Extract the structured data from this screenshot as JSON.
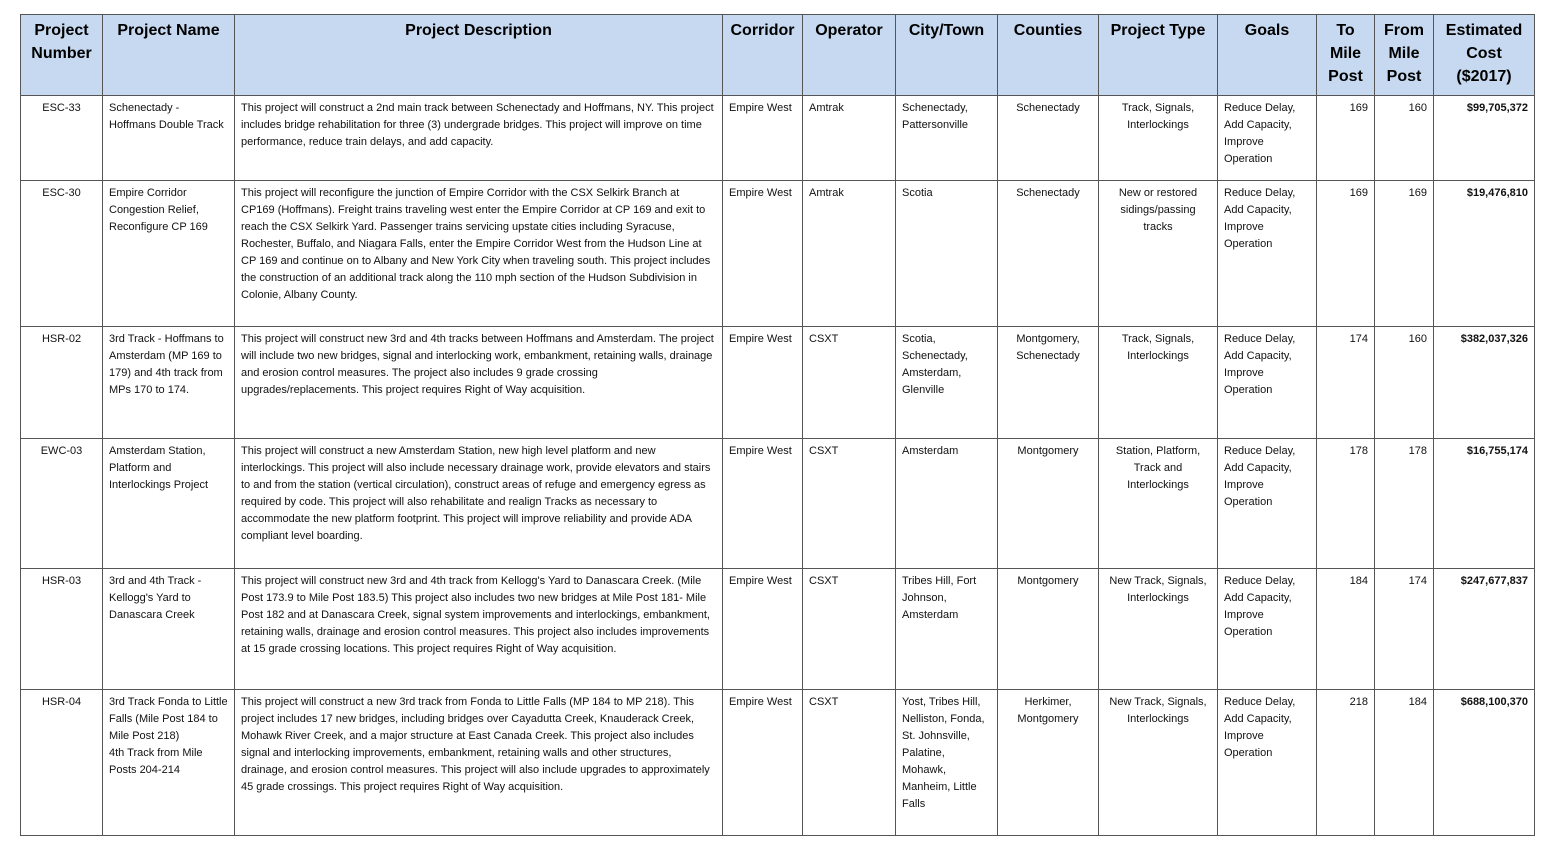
{
  "table": {
    "headers": [
      "Project Number",
      "Project Name",
      "Project Description",
      "Corridor",
      "Operator",
      "City/Town",
      "Counties",
      "Project Type",
      "Goals",
      "To Mile Post",
      "From Mile Post",
      "Estimated Cost ($2017)"
    ],
    "rows": [
      [
        "ESC-33",
        "Schenectady - Hoffmans Double Track",
        "This project will construct a 2nd main track between Schenectady and Hoffmans, NY. This project includes bridge rehabilitation for three (3) undergrade bridges. This project will improve on time performance, reduce train delays, and add capacity.",
        "Empire West",
        "Amtrak",
        "Schenectady, Pattersonville",
        "Schenectady",
        "Track, Signals, Interlockings",
        "Reduce Delay, Add Capacity, Improve Operation",
        169,
        160,
        "$99,705,372"
      ],
      [
        "ESC-30",
        "Empire Corridor Congestion Relief, Reconfigure CP 169",
        "This project will reconfigure the junction of Empire Corridor with the CSX Selkirk Branch at CP169 (Hoffmans). Freight trains traveling west enter the Empire Corridor at CP 169 and exit to reach the CSX Selkirk Yard. Passenger trains servicing upstate cities including Syracuse, Rochester, Buffalo, and Niagara Falls, enter the Empire Corridor West from the Hudson Line at CP 169 and continue on to Albany and New York City when traveling south. This project includes the construction of an additional track along the 110 mph section of the Hudson Subdivision in Colonie, Albany County.",
        "Empire West",
        "Amtrak",
        "Scotia",
        "Schenectady",
        "New or restored sidings/passing tracks",
        "Reduce Delay, Add Capacity, Improve Operation",
        169,
        169,
        "$19,476,810"
      ],
      [
        "HSR-02",
        "3rd Track - Hoffmans to Amsterdam (MP 169 to 179) and 4th track from MPs 170 to 174.",
        "This project will construct new 3rd and 4th tracks between Hoffmans and Amsterdam. The project will include two new bridges, signal and interlocking work, embankment, retaining walls, drainage and erosion control measures. The project also includes 9 grade crossing upgrades/replacements. This project requires Right of Way acquisition.",
        "Empire West",
        "CSXT",
        "Scotia, Schenectady, Amsterdam, Glenville",
        "Montgomery, Schenectady",
        "Track, Signals, Interlockings",
        "Reduce Delay, Add Capacity, Improve Operation",
        174,
        160,
        "$382,037,326"
      ],
      [
        "EWC-03",
        "Amsterdam Station, Platform and Interlockings Project",
        "This project will construct a new Amsterdam Station, new high level platform and new interlockings. This project will also include necessary drainage work, provide elevators and stairs to and from the station (vertical circulation), construct areas of refuge and emergency egress as required by code. This project will also rehabilitate and realign Tracks as necessary to accommodate the new platform footprint. This project will improve reliability and provide ADA compliant level boarding.",
        "Empire West",
        "CSXT",
        "Amsterdam",
        "Montgomery",
        "Station, Platform, Track and Interlockings",
        "Reduce Delay, Add Capacity, Improve Operation",
        178,
        178,
        "$16,755,174"
      ],
      [
        "HSR-03",
        "3rd and 4th Track - Kellogg's Yard to Danascara Creek",
        "This project will construct new 3rd and 4th track from Kellogg's Yard to Danascara Creek. (Mile Post 173.9 to Mile Post 183.5) This project also includes two new bridges at Mile Post 181- Mile Post 182 and at Danascara Creek, signal system improvements and interlockings, embankment, retaining walls, drainage and erosion control measures. This project also includes improvements at 15 grade crossing locations. This project requires Right of Way acquisition.",
        "Empire West",
        "CSXT",
        "Tribes Hill, Fort Johnson, Amsterdam",
        "Montgomery",
        "New Track, Signals, Interlockings",
        "Reduce Delay, Add Capacity, Improve Operation",
        184,
        174,
        "$247,677,837"
      ],
      [
        "HSR-04",
        "3rd Track Fonda to Little Falls (Mile Post 184 to Mile Post 218)\n4th Track from Mile Posts 204-214",
        "This project will construct a new 3rd track from Fonda to Little Falls (MP 184 to MP 218). This project includes 17 new bridges, including bridges over Cayadutta Creek, Knauderack Creek, Mohawk River Creek, and a major structure at East Canada Creek. This project also includes signal and interlocking improvements, embankment, retaining walls and other structures, drainage, and erosion control measures. This project will also include upgrades to approximately 45 grade crossings. This project requires Right of Way acquisition.",
        "Empire West",
        "CSXT",
        "Yost, Tribes Hill, Nelliston, Fonda, St. Johnsville, Palatine, Mohawk, Manheim, Little Falls",
        "Herkimer, Montgomery",
        "New Track, Signals, Interlockings",
        "Reduce Delay, Add Capacity, Improve Operation",
        218,
        184,
        "$688,100,370"
      ]
    ]
  }
}
